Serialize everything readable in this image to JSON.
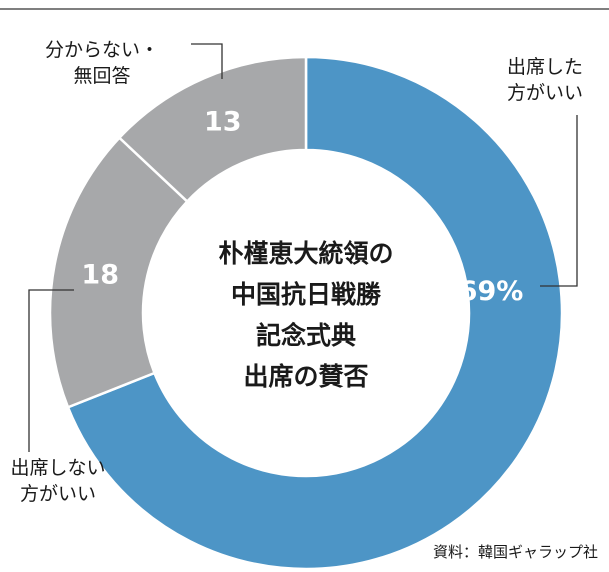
{
  "chart_data": {
    "type": "pie",
    "title": [
      "朴槿恵大統領の",
      "中国抗日戦勝",
      "記念式典",
      "出席の賛否"
    ],
    "categories": [
      "出席した方がいい",
      "出席しない方がいい",
      "分からない・無回答"
    ],
    "values": [
      69,
      18,
      13
    ],
    "value_labels": [
      "69%",
      "18",
      "13"
    ],
    "category_labels": [
      [
        "出席した",
        "方がいい"
      ],
      [
        "出席しない",
        "方がいい"
      ],
      [
        "分からない・",
        "無回答"
      ]
    ],
    "colors": [
      "#4d95c6",
      "#a7a8aa",
      "#a7a8aa"
    ],
    "source": "資料：韓国ギャラップ社"
  }
}
